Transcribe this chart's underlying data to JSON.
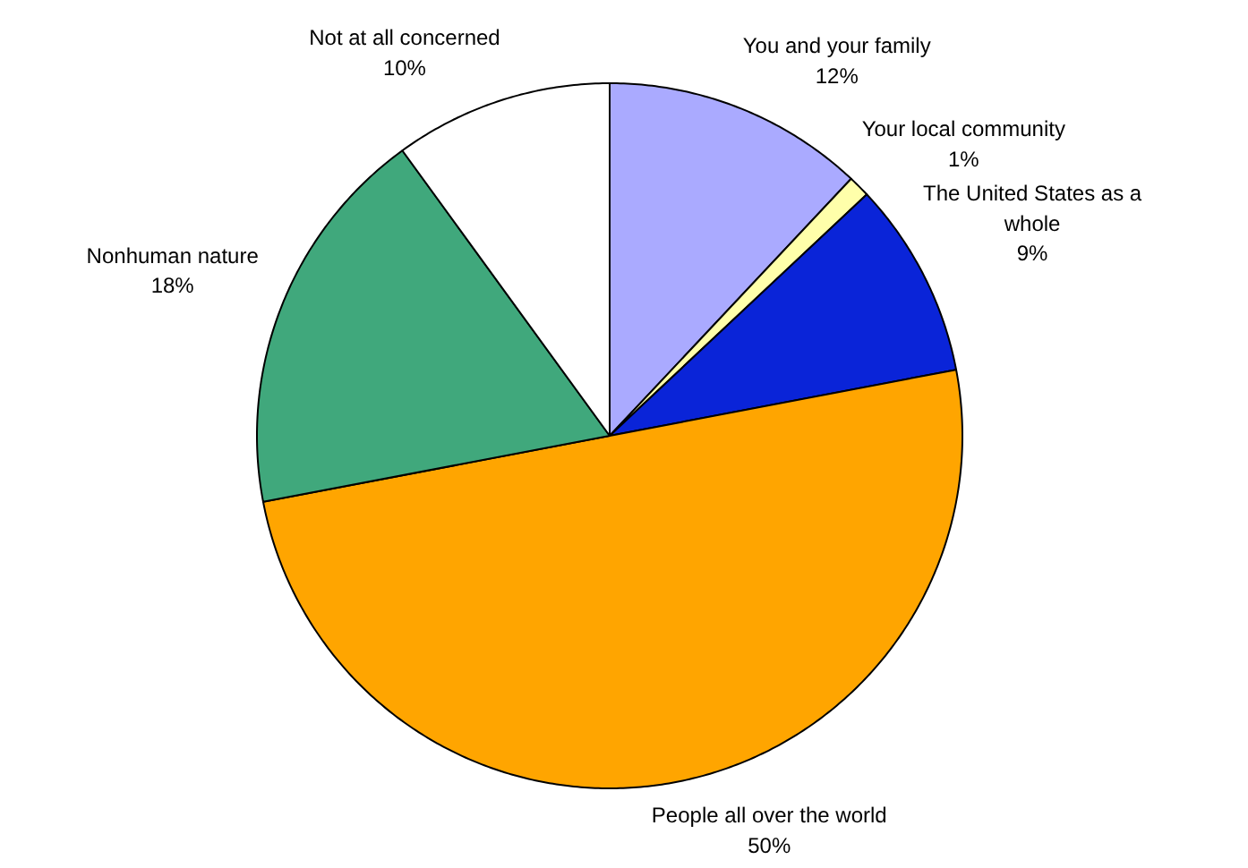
{
  "chart_data": {
    "type": "pie",
    "categories": [
      "You and your family",
      "Your local community",
      "The United States as a whole",
      "People all over the world",
      "Nonhuman nature",
      "Not at all concerned"
    ],
    "values": [
      12,
      1,
      9,
      50,
      18,
      10
    ],
    "value_labels": [
      "12%",
      "1%",
      "9%",
      "50%",
      "18%",
      "10%"
    ],
    "colors": [
      "#aaaaff",
      "#ffffaa",
      "#0a24d8",
      "#ffa500",
      "#40a87c",
      "#ffffff"
    ]
  }
}
